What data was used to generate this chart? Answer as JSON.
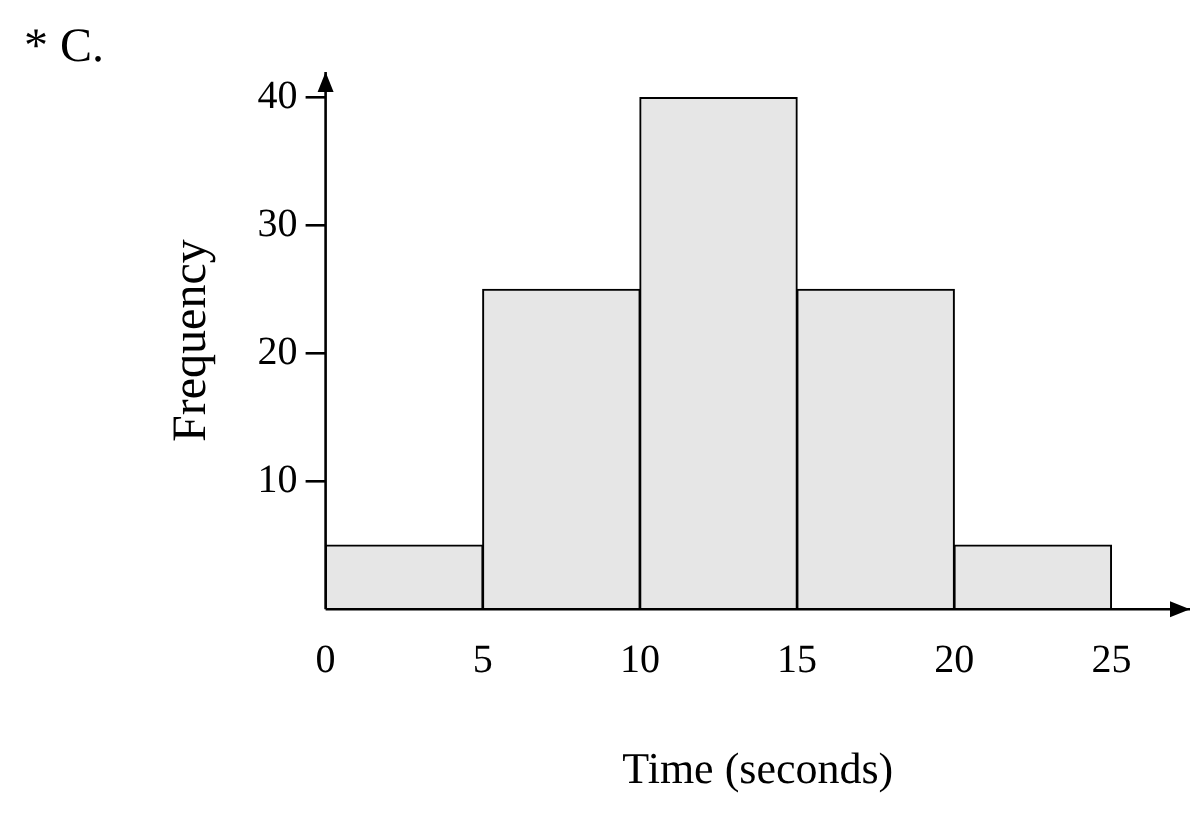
{
  "chart_data": {
    "type": "histogram",
    "annotations": [
      "* C."
    ],
    "xlabel": "Time (seconds)",
    "ylabel": "Frequency",
    "bins": [
      0,
      5,
      10,
      15,
      20,
      25
    ],
    "values": [
      5,
      25,
      40,
      25,
      5
    ],
    "color": "#e6e6e6",
    "xlim": [
      0,
      27.5
    ],
    "xticks": [
      0,
      5,
      10,
      15,
      20,
      25
    ],
    "ylim": [
      0,
      42
    ],
    "yticks": [
      10,
      20,
      30,
      40
    ],
    "grid": false,
    "legend": false
  }
}
